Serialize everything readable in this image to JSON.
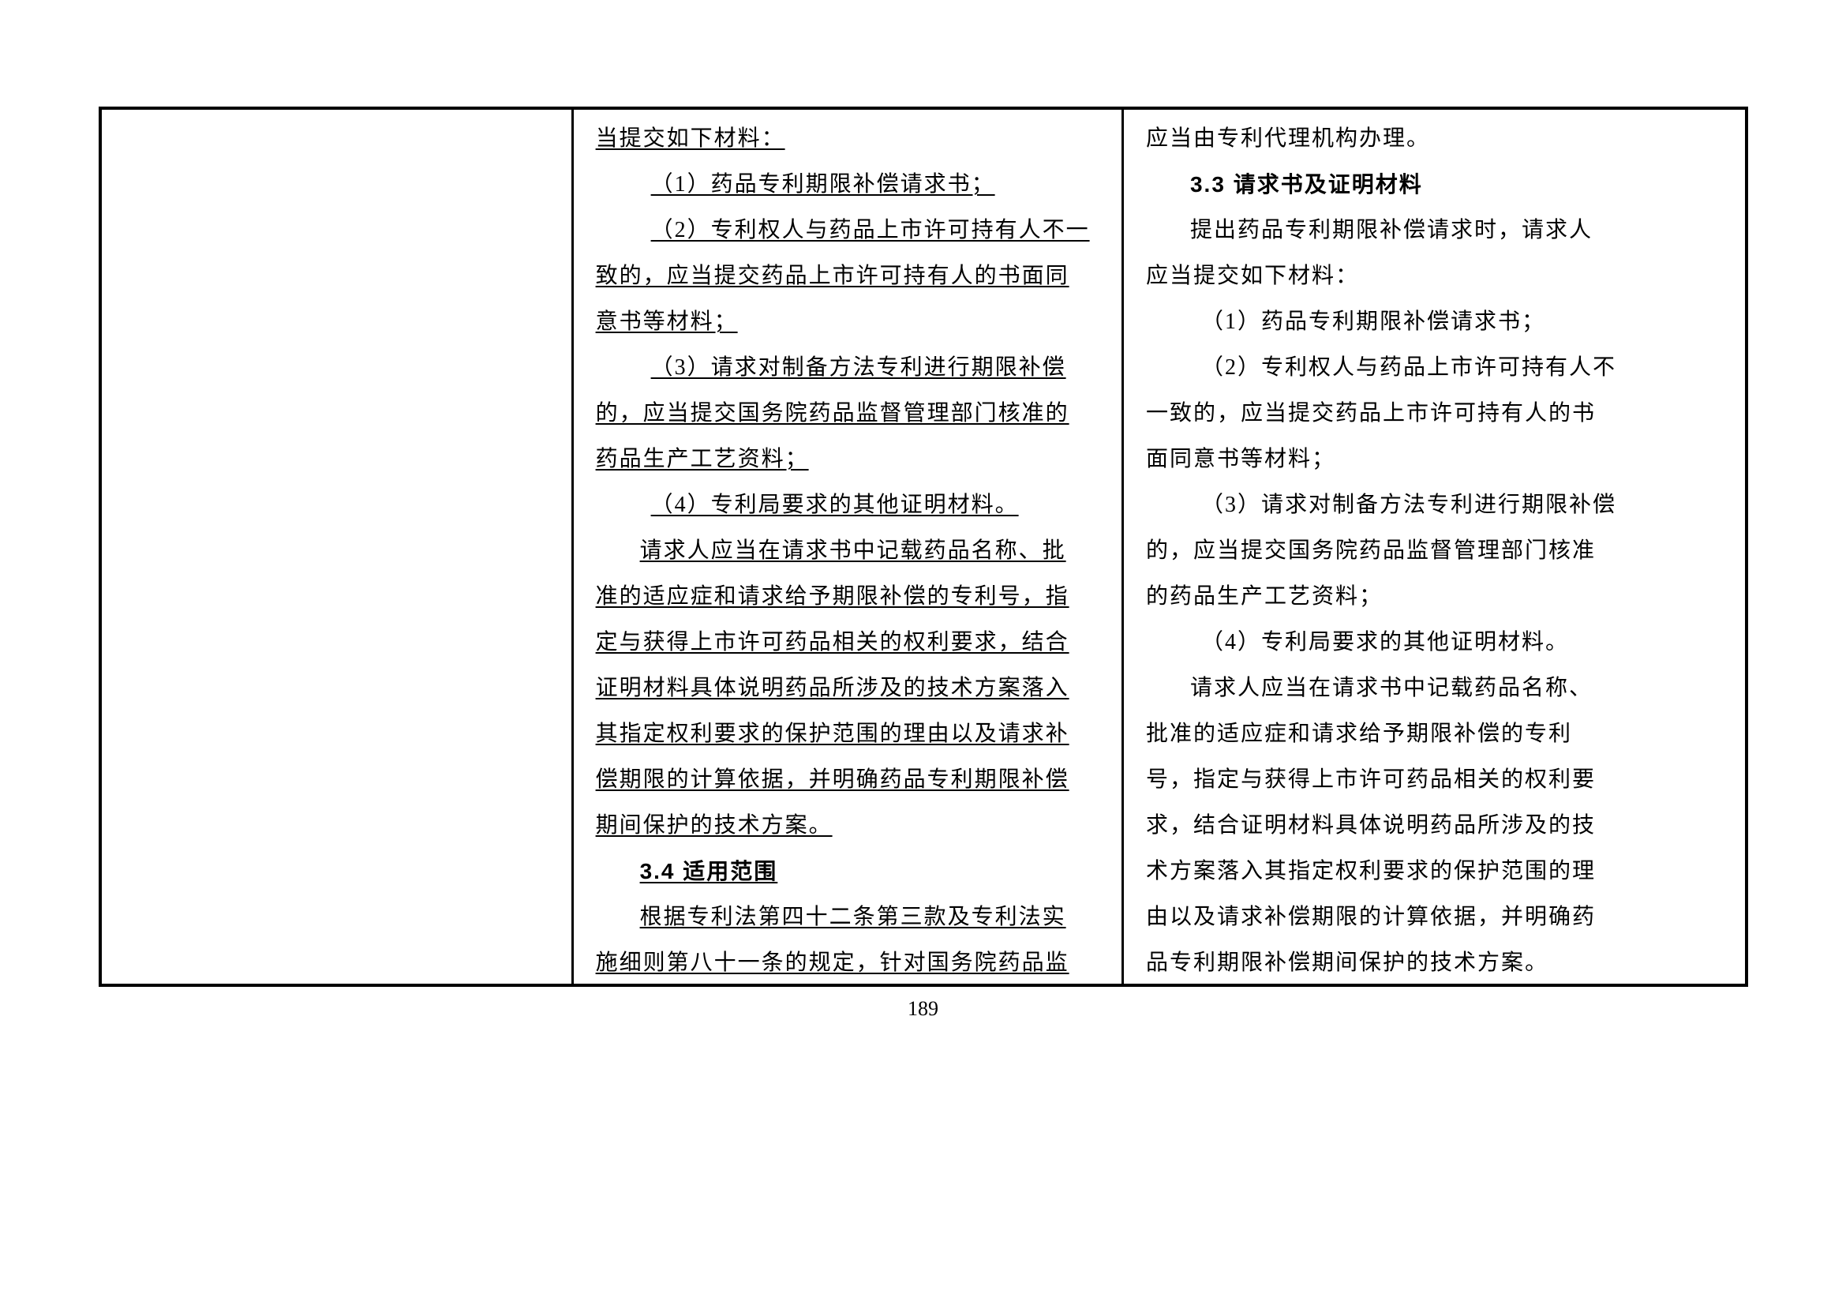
{
  "page_number": "189",
  "layout": {
    "border_color": "#000000",
    "border_width": 4,
    "inner_border_width": 3,
    "background_color": "#ffffff",
    "font_family_body": "SimSun",
    "font_family_heading": "SimHei",
    "font_size_body": 28,
    "line_height": 58,
    "text_color": "#000000"
  },
  "columns": {
    "col1": {
      "content": ""
    },
    "col2": {
      "style": "underline",
      "lines": {
        "l1": "当提交如下材料：",
        "l2": "（1）药品专利期限补偿请求书；",
        "l3": "（2）专利权人与药品上市许可持有人不一",
        "l4": "致的，应当提交药品上市许可持有人的书面同",
        "l5": "意书等材料；",
        "l6": "（3）请求对制备方法专利进行期限补偿",
        "l7": "的，应当提交国务院药品监督管理部门核准的",
        "l8": "药品生产工艺资料；",
        "l9": "（4）专利局要求的其他证明材料。",
        "l10": "请求人应当在请求书中记载药品名称、批",
        "l11": "准的适应症和请求给予期限补偿的专利号，指",
        "l12": "定与获得上市许可药品相关的权利要求，结合",
        "l13": "证明材料具体说明药品所涉及的技术方案落入",
        "l14": "其指定权利要求的保护范围的理由以及请求补",
        "l15": "偿期限的计算依据，并明确药品专利期限补偿",
        "l16": "期间保护的技术方案。",
        "h1": "3.4  适用范围",
        "l17": "根据专利法第四十二条第三款及专利法实",
        "l18": "施细则第八十一条的规定，针对国务院药品监"
      }
    },
    "col3": {
      "lines": {
        "l1": "应当由专利代理机构办理。",
        "h1": "3.3  请求书及证明材料",
        "l2": "提出药品专利期限补偿请求时，请求人",
        "l3": "应当提交如下材料：",
        "l4": "（1）药品专利期限补偿请求书；",
        "l5": "（2）专利权人与药品上市许可持有人不",
        "l6": "一致的，应当提交药品上市许可持有人的书",
        "l7": "面同意书等材料；",
        "l8": "（3）请求对制备方法专利进行期限补偿",
        "l9": "的，应当提交国务院药品监督管理部门核准",
        "l10": "的药品生产工艺资料；",
        "l11": "（4）专利局要求的其他证明材料。",
        "l12": "请求人应当在请求书中记载药品名称、",
        "l13": "批准的适应症和请求给予期限补偿的专利",
        "l14": "号，指定与获得上市许可药品相关的权利要",
        "l15": "求，结合证明材料具体说明药品所涉及的技",
        "l16": "术方案落入其指定权利要求的保护范围的理",
        "l17": "由以及请求补偿期限的计算依据，并明确药",
        "l18": "品专利期限补偿期间保护的技术方案。"
      }
    }
  }
}
